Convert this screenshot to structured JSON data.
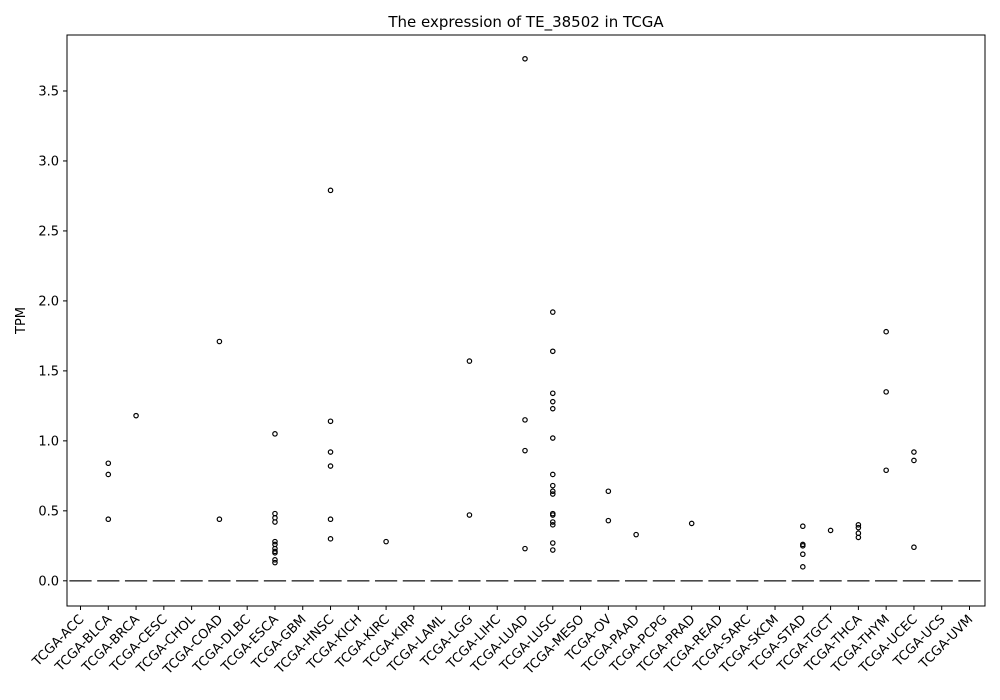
{
  "chart_data": {
    "type": "box",
    "title": "The expression of TE_38502 in TCGA",
    "xlabel": "",
    "ylabel": "TPM",
    "ylim": [
      -0.18,
      3.9
    ],
    "yticks": [
      0.0,
      0.5,
      1.0,
      1.5,
      2.0,
      2.5,
      3.0,
      3.5
    ],
    "ytick_labels": [
      "0.0",
      "0.5",
      "1.0",
      "1.5",
      "2.0",
      "2.5",
      "3.0",
      "3.5"
    ],
    "categories": [
      "TCGA-ACC",
      "TCGA-BLCA",
      "TCGA-BRCA",
      "TCGA-CESC",
      "TCGA-CHOL",
      "TCGA-COAD",
      "TCGA-DLBC",
      "TCGA-ESCA",
      "TCGA-GBM",
      "TCGA-HNSC",
      "TCGA-KICH",
      "TCGA-KIRC",
      "TCGA-KIRP",
      "TCGA-LAML",
      "TCGA-LGG",
      "TCGA-LIHC",
      "TCGA-LUAD",
      "TCGA-LUSC",
      "TCGA-MESO",
      "TCGA-OV",
      "TCGA-PAAD",
      "TCGA-PCPG",
      "TCGA-PRAD",
      "TCGA-READ",
      "TCGA-SARC",
      "TCGA-SKCM",
      "TCGA-STAD",
      "TCGA-TGCT",
      "TCGA-THCA",
      "TCGA-THYM",
      "TCGA-UCEC",
      "TCGA-UCS",
      "TCGA-UVM"
    ],
    "median": [
      0,
      0,
      0,
      0,
      0,
      0,
      0,
      0,
      0,
      0,
      0,
      0,
      0,
      0,
      0,
      0,
      0,
      0,
      0,
      0,
      0,
      0,
      0,
      0,
      0,
      0,
      0,
      0,
      0,
      0,
      0,
      0,
      0
    ],
    "outliers": [
      [],
      [
        0.84,
        0.76,
        0.44
      ],
      [
        1.18
      ],
      [],
      [],
      [
        1.71,
        0.44
      ],
      [],
      [
        1.05,
        0.48,
        0.45,
        0.42,
        0.28,
        0.26,
        0.23,
        0.21,
        0.2,
        0.15,
        0.13
      ],
      [],
      [
        2.79,
        1.14,
        0.92,
        0.82,
        0.44,
        0.3
      ],
      [],
      [
        0.28
      ],
      [],
      [],
      [
        1.57,
        0.47
      ],
      [],
      [
        3.73,
        1.15,
        0.93,
        0.23
      ],
      [
        1.92,
        1.64,
        1.34,
        1.28,
        1.23,
        1.02,
        0.76,
        0.68,
        0.64,
        0.62,
        0.48,
        0.47,
        0.42,
        0.4,
        0.27,
        0.22
      ],
      [],
      [
        0.64,
        0.43
      ],
      [
        0.33
      ],
      [],
      [
        0.41
      ],
      [],
      [],
      [],
      [
        0.39,
        0.26,
        0.25,
        0.19,
        0.1
      ],
      [
        0.36
      ],
      [
        0.4,
        0.38,
        0.34,
        0.31
      ],
      [
        1.78,
        1.35,
        0.79
      ],
      [
        0.92,
        0.86,
        0.24
      ],
      [],
      []
    ],
    "grid": false,
    "legend": "none"
  }
}
